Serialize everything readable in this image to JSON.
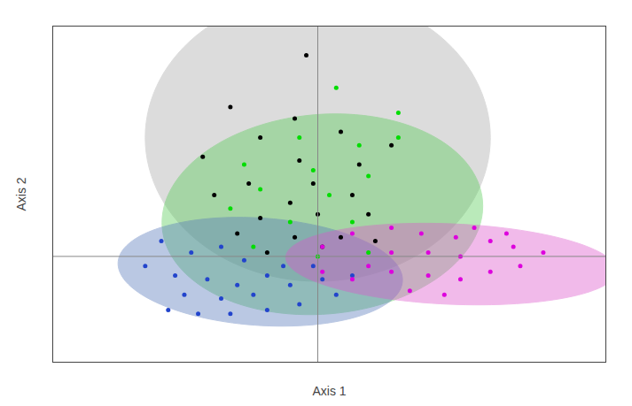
{
  "chart_data": {
    "type": "scatter",
    "xlabel": "Axis 1",
    "ylabel": "Axis 2",
    "xlim": [
      -0.95,
      1.45
    ],
    "ylim": [
      -0.55,
      1.2
    ],
    "grid": false,
    "tick_labels": false,
    "crosshair": {
      "x": 0.2,
      "y": 0.0,
      "color": "#888888"
    },
    "ellipses": [
      {
        "cx": 0.2,
        "cy": 0.62,
        "rx": 0.75,
        "ry": 0.75,
        "angle": 0,
        "color": "#aaaaaa"
      },
      {
        "cx": 0.22,
        "cy": 0.22,
        "rx": 0.7,
        "ry": 0.52,
        "angle": 8,
        "color": "#55cc55"
      },
      {
        "cx": -0.05,
        "cy": -0.08,
        "rx": 0.62,
        "ry": 0.28,
        "angle": -5,
        "color": "#5577bb"
      },
      {
        "cx": 0.78,
        "cy": -0.04,
        "rx": 0.72,
        "ry": 0.21,
        "angle": -3,
        "color": "#dd55cc"
      }
    ],
    "series": [
      {
        "color": "#000000",
        "points": [
          [
            0.15,
            1.05
          ],
          [
            -0.18,
            0.78
          ],
          [
            0.1,
            0.72
          ],
          [
            -0.05,
            0.62
          ],
          [
            0.3,
            0.65
          ],
          [
            0.52,
            0.58
          ],
          [
            -0.3,
            0.52
          ],
          [
            0.12,
            0.5
          ],
          [
            0.38,
            0.48
          ],
          [
            -0.1,
            0.38
          ],
          [
            0.18,
            0.38
          ],
          [
            -0.25,
            0.32
          ],
          [
            0.08,
            0.28
          ],
          [
            0.35,
            0.32
          ],
          [
            -0.05,
            0.2
          ],
          [
            0.2,
            0.22
          ],
          [
            0.42,
            0.22
          ],
          [
            -0.15,
            0.12
          ],
          [
            0.1,
            0.1
          ],
          [
            0.3,
            0.1
          ],
          [
            -0.02,
            0.02
          ],
          [
            0.22,
            0.05
          ],
          [
            0.45,
            0.08
          ]
        ]
      },
      {
        "color": "#00dd00",
        "points": [
          [
            0.28,
            0.88
          ],
          [
            0.55,
            0.75
          ],
          [
            0.55,
            0.62
          ],
          [
            0.12,
            0.62
          ],
          [
            0.38,
            0.58
          ],
          [
            -0.12,
            0.48
          ],
          [
            0.18,
            0.45
          ],
          [
            0.42,
            0.42
          ],
          [
            -0.05,
            0.35
          ],
          [
            0.25,
            0.32
          ],
          [
            -0.18,
            0.25
          ],
          [
            0.08,
            0.18
          ],
          [
            0.35,
            0.18
          ],
          [
            -0.08,
            0.05
          ],
          [
            0.2,
            0.0
          ],
          [
            0.42,
            0.02
          ]
        ]
      },
      {
        "color": "#2244cc",
        "points": [
          [
            -0.48,
            0.08
          ],
          [
            -0.35,
            0.02
          ],
          [
            -0.22,
            0.05
          ],
          [
            -0.55,
            -0.05
          ],
          [
            -0.12,
            -0.02
          ],
          [
            -0.42,
            -0.1
          ],
          [
            -0.28,
            -0.12
          ],
          [
            -0.15,
            -0.15
          ],
          [
            -0.02,
            -0.1
          ],
          [
            -0.38,
            -0.2
          ],
          [
            -0.22,
            -0.22
          ],
          [
            -0.08,
            -0.2
          ],
          [
            0.08,
            -0.15
          ],
          [
            0.22,
            -0.12
          ],
          [
            -0.32,
            -0.3
          ],
          [
            -0.18,
            -0.3
          ],
          [
            -0.02,
            -0.28
          ],
          [
            0.12,
            -0.25
          ],
          [
            0.28,
            -0.2
          ],
          [
            -0.45,
            -0.28
          ],
          [
            0.05,
            -0.05
          ],
          [
            0.18,
            -0.05
          ],
          [
            0.35,
            -0.1
          ]
        ]
      },
      {
        "color": "#dd00dd",
        "points": [
          [
            0.35,
            0.12
          ],
          [
            0.52,
            0.15
          ],
          [
            0.65,
            0.12
          ],
          [
            0.8,
            0.1
          ],
          [
            0.95,
            0.08
          ],
          [
            1.05,
            0.05
          ],
          [
            1.18,
            0.02
          ],
          [
            0.52,
            0.02
          ],
          [
            0.68,
            0.02
          ],
          [
            0.82,
            0.0
          ],
          [
            0.52,
            -0.08
          ],
          [
            0.68,
            -0.1
          ],
          [
            0.82,
            -0.12
          ],
          [
            0.95,
            -0.08
          ],
          [
            1.08,
            -0.05
          ],
          [
            0.42,
            -0.05
          ],
          [
            0.6,
            -0.18
          ],
          [
            0.75,
            -0.2
          ],
          [
            0.35,
            -0.12
          ],
          [
            0.22,
            -0.08
          ],
          [
            0.22,
            0.05
          ],
          [
            0.88,
            0.15
          ],
          [
            1.02,
            0.12
          ]
        ]
      }
    ]
  }
}
